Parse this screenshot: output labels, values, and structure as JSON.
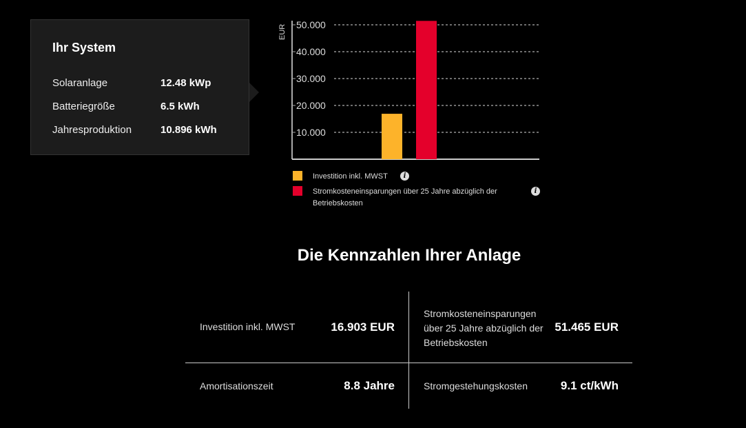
{
  "system": {
    "title": "Ihr System",
    "rows": [
      {
        "label": "Solaranlage",
        "value": "12.48 kWp"
      },
      {
        "label": "Batteriegröße",
        "value": "6.5 kWh"
      },
      {
        "label": "Jahresproduktion",
        "value": "10.896 kWh"
      }
    ]
  },
  "chart_data": {
    "type": "bar",
    "ylabel": "EUR",
    "ylim": [
      0,
      50000
    ],
    "yticks": [
      "10.000",
      "20.000",
      "30.000",
      "40.000",
      "50.000"
    ],
    "grid": true,
    "series": [
      {
        "name": "Investition inkl. MWST",
        "value": 16903,
        "color": "#FDB32A"
      },
      {
        "name": "Stromkosteneinsparungen über 25 Jahre abzüglich der Betriebskosten",
        "value": 51465,
        "color": "#E4002B"
      }
    ],
    "legend": "bottom"
  },
  "kennzahlen": {
    "title": "Die Kennzahlen Ihrer Anlage",
    "items": [
      {
        "label": "Investition inkl. MWST",
        "value": "16.903 EUR"
      },
      {
        "label": "Stromkosteneinsparungen über 25 Jahre abzüglich der Betriebskosten",
        "value": "51.465 EUR"
      },
      {
        "label": "Amortisationszeit",
        "value": "8.8 Jahre"
      },
      {
        "label": "Stromgestehungskosten",
        "value": "9.1 ct/kWh"
      }
    ]
  }
}
